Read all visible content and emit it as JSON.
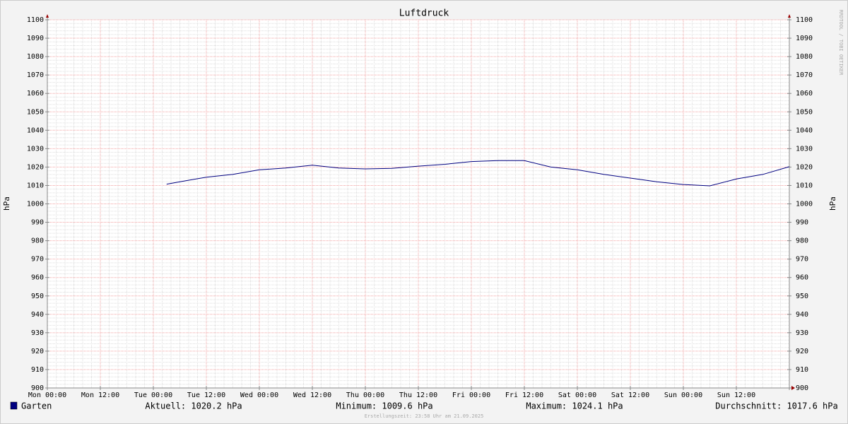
{
  "chart_data": {
    "type": "line",
    "title": "Luftdruck",
    "y_label": "hPa",
    "y2_label": "hPa",
    "x": [
      27,
      30,
      36,
      42,
      48,
      54,
      60,
      66,
      72,
      78,
      84,
      90,
      96,
      102,
      108,
      114,
      120,
      126,
      132,
      138,
      144,
      150,
      156,
      162,
      168
    ],
    "series": [
      {
        "name": "Garten",
        "color": "#000080",
        "values": [
          1010.7,
          1012,
          1014.5,
          1016,
          1018.5,
          1019.5,
          1021,
          1019.5,
          1019,
          1019.3,
          1020.5,
          1021.5,
          1023,
          1023.5,
          1023.5,
          1020,
          1018.5,
          1016,
          1014,
          1012,
          1010.5,
          1009.8,
          1013.5,
          1016,
          1020.2
        ]
      }
    ],
    "xlim": [
      0,
      168
    ],
    "xticks": [
      {
        "value": 0,
        "label": "Mon 00:00"
      },
      {
        "value": 12,
        "label": "Mon 12:00"
      },
      {
        "value": 24,
        "label": "Tue 00:00"
      },
      {
        "value": 36,
        "label": "Tue 12:00"
      },
      {
        "value": 48,
        "label": "Wed 00:00"
      },
      {
        "value": 60,
        "label": "Wed 12:00"
      },
      {
        "value": 72,
        "label": "Thu 00:00"
      },
      {
        "value": 84,
        "label": "Thu 12:00"
      },
      {
        "value": 96,
        "label": "Fri 00:00"
      },
      {
        "value": 108,
        "label": "Fri 12:00"
      },
      {
        "value": 120,
        "label": "Sat 00:00"
      },
      {
        "value": 132,
        "label": "Sat 12:00"
      },
      {
        "value": 144,
        "label": "Sun 00:00"
      },
      {
        "value": 156,
        "label": "Sun 12:00"
      }
    ],
    "ylim": [
      900,
      1100
    ],
    "yticks": [
      900,
      910,
      920,
      930,
      940,
      950,
      960,
      970,
      980,
      990,
      1000,
      1010,
      1020,
      1030,
      1040,
      1050,
      1060,
      1070,
      1080,
      1090,
      1100
    ],
    "grid": true,
    "stats": [
      "Aktuell: 1020.2 hPa",
      "Minimum: 1009.6 hPa",
      "Maximum: 1024.1 hPa",
      "Durchschnitt: 1017.6 hPa"
    ],
    "watermark": "RRDTOOL / TOBI OETIKER",
    "footer": "Erstellungszeit: 23:58 Uhr am 21.09.2025"
  }
}
